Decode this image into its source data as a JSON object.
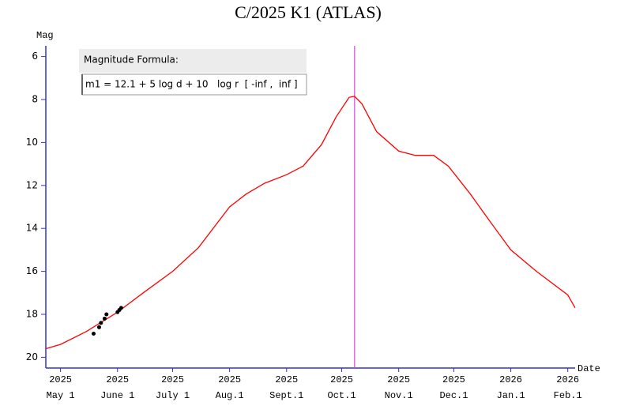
{
  "chart_data": {
    "type": "line",
    "title": "C/2025 K1 (ATLAS)",
    "y_label": "Mag",
    "x_label": "Date",
    "formula_title": "Magnitude Formula:",
    "formula": "m1 = 12.1 + 5 log d + 10   log r  [ -inf ,  inf ]",
    "xlim": [
      "2025-04-23",
      "2026-02-05"
    ],
    "xticks": [
      {
        "value": "2025-05-01",
        "year": "2025",
        "label": "May 1"
      },
      {
        "value": "2025-06-01",
        "year": "2025",
        "label": "June 1"
      },
      {
        "value": "2025-07-01",
        "year": "2025",
        "label": "July 1"
      },
      {
        "value": "2025-08-01",
        "year": "2025",
        "label": "Aug.1"
      },
      {
        "value": "2025-09-01",
        "year": "2025",
        "label": "Sept.1"
      },
      {
        "value": "2025-10-01",
        "year": "2025",
        "label": "Oct.1"
      },
      {
        "value": "2025-11-01",
        "year": "2025",
        "label": "Nov.1"
      },
      {
        "value": "2025-12-01",
        "year": "2025",
        "label": "Dec.1"
      },
      {
        "value": "2026-01-01",
        "year": "2026",
        "label": "Jan.1"
      },
      {
        "value": "2026-02-01",
        "year": "2026",
        "label": "Feb.1"
      }
    ],
    "ylim": [
      5.5,
      20.5
    ],
    "y_inverted": true,
    "yticks": [
      6,
      8,
      10,
      12,
      14,
      16,
      18,
      20
    ],
    "axis_color": "#3333cc",
    "marker_line": {
      "x": "2025-10-08",
      "color": "#e040e0"
    },
    "x": [
      "2025-04-23",
      "2025-05-01",
      "2025-05-15",
      "2025-06-01",
      "2025-06-15",
      "2025-07-01",
      "2025-07-15",
      "2025-08-01",
      "2025-08-10",
      "2025-08-20",
      "2025-09-01",
      "2025-09-10",
      "2025-09-20",
      "2025-09-28",
      "2025-10-05",
      "2025-10-08",
      "2025-10-12",
      "2025-10-20",
      "2025-11-01",
      "2025-11-10",
      "2025-11-20",
      "2025-11-28",
      "2025-12-10",
      "2025-12-20",
      "2026-01-01",
      "2026-01-15",
      "2026-02-01",
      "2026-02-05"
    ],
    "series": [
      {
        "color": "#ff0000",
        "values": [
          19.6,
          19.4,
          18.8,
          17.9,
          17.0,
          16.0,
          14.9,
          13.0,
          12.4,
          11.9,
          11.5,
          11.1,
          10.1,
          8.8,
          7.9,
          7.85,
          8.2,
          9.5,
          10.4,
          10.6,
          10.6,
          11.1,
          12.4,
          13.6,
          15.0,
          16.0,
          17.1,
          17.7
        ]
      }
    ],
    "observations": {
      "color": "#000000",
      "x": [
        "2025-05-19",
        "2025-05-22",
        "2025-05-23",
        "2025-05-25",
        "2025-05-26",
        "2025-06-01",
        "2025-06-02",
        "2025-06-03"
      ],
      "values": [
        18.9,
        18.6,
        18.4,
        18.2,
        18.0,
        17.9,
        17.8,
        17.7
      ]
    }
  }
}
